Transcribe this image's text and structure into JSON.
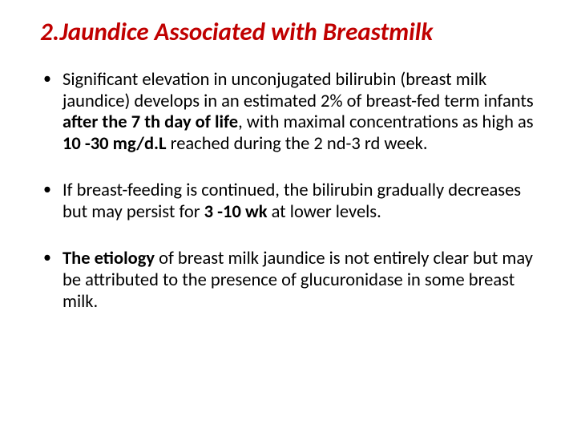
{
  "title": "2.Jaundice Associated with Breastmilk",
  "bullets": [
    {
      "t1": "Significant elevation in unconjugated bilirubin (breast milk jaundice) develops in an estimated 2% of breast-fed term infants ",
      "b1": "after the 7 th day of life",
      "t2": ", with maximal concentrations as high as ",
      "b2": "10 -30 mg/d.L",
      "t3": " reached during the 2 nd-3 rd week."
    },
    {
      "t1": " If breast-feeding is continued, the bilirubin gradually decreases but may persist for ",
      "b1": "3 -10 wk",
      "t2": " at lower levels."
    },
    {
      "b0": "The etiology",
      "t1": " of breast milk jaundice is not entirely clear but may be attributed to the presence of glucuronidase in some breast milk."
    }
  ]
}
